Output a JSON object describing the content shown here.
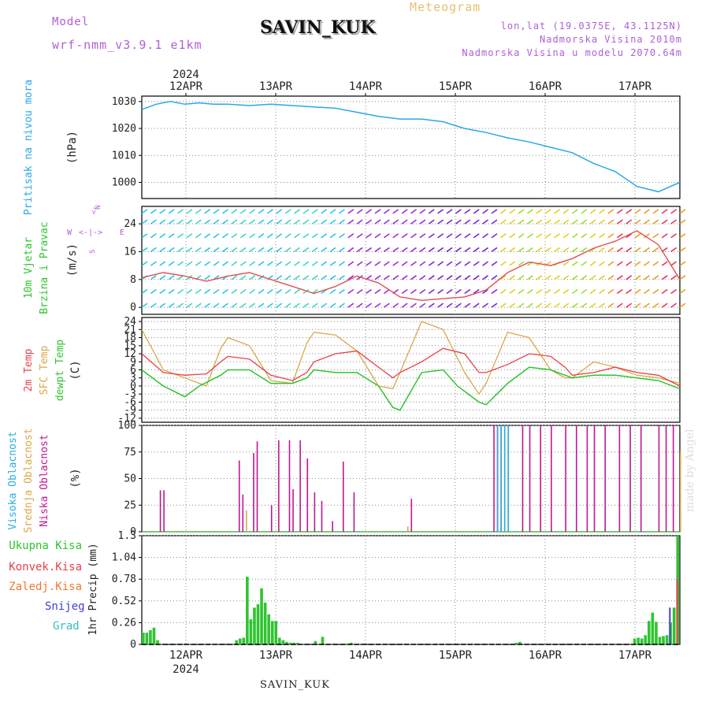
{
  "header": {
    "model_label": "Model",
    "model_version": "wrf-nmm_v3.9.1 e1km",
    "station": "SAVIN_KUK",
    "title": "Meteogram",
    "lonlat": "lon,lat (19.0375E, 43.1125N)",
    "altitude": "Nadmorska Visina 2010m",
    "model_altitude": "Nadmorska Visina u modelu 2070.64m"
  },
  "footer": {
    "station": "SAVIN_KUK",
    "credit": "made by Angel"
  },
  "time_axis": {
    "year": "2024",
    "days": [
      "12APR",
      "13APR",
      "14APR",
      "15APR",
      "16APR",
      "17APR"
    ]
  },
  "colors": {
    "pressure": "#2ba8e6",
    "temp2m": "#e8404a",
    "sfc_temp": "#d9a84a",
    "dewpt": "#2fc42f",
    "high_cloud": "#2aaee0",
    "mid_cloud": "#d9a84a",
    "low_cloud": "#c01890",
    "total_precip": "#2fc42f",
    "conv_precip": "#e8404a",
    "frozen_precip": "#f07830",
    "snow": "#4040d0",
    "hail": "#30c0c0"
  },
  "chart_data": [
    {
      "type": "line",
      "panel": "pressure",
      "ylabel_lines": [
        "Pritisak na nivou mora",
        "(hPa)"
      ],
      "yticks": [
        "1000",
        "1010",
        "1020",
        "1030"
      ],
      "ylim": [
        994,
        1032
      ],
      "x_unit": "hours since 11APR 12UTC",
      "series": [
        {
          "x": [
            0,
            4,
            8,
            12,
            16,
            20,
            24,
            30,
            36,
            42,
            48,
            54,
            60,
            66,
            72,
            78,
            84,
            90,
            96,
            102,
            108,
            114,
            120,
            126,
            132,
            138,
            144,
            150
          ],
          "y": [
            1027,
            1029,
            1030,
            1029,
            1029.5,
            1029,
            1029,
            1028.5,
            1029,
            1028.5,
            1028,
            1027.5,
            1026,
            1024.5,
            1023.5,
            1023.5,
            1022.5,
            1020,
            1018.5,
            1016.5,
            1015,
            1013,
            1011,
            1007,
            1004,
            998.5,
            996.5,
            1000
          ]
        }
      ]
    },
    {
      "type": "line",
      "panel": "wind",
      "ylabel_lines": [
        "10m Vjetar",
        "Brzina i Pravac",
        "(m/s)"
      ],
      "compass": [
        "N",
        "E",
        "S",
        "W"
      ],
      "yticks": [
        "0",
        "8",
        "16",
        "24"
      ],
      "ylim": [
        -2,
        29
      ],
      "series": [
        {
          "name": "speed",
          "x": [
            0,
            6,
            12,
            18,
            24,
            30,
            36,
            42,
            48,
            54,
            60,
            66,
            72,
            78,
            84,
            90,
            96,
            102,
            108,
            114,
            120,
            126,
            132,
            138,
            144,
            150
          ],
          "y": [
            8.5,
            10,
            9,
            7.5,
            9,
            10,
            8,
            6,
            4,
            6,
            9,
            7,
            3,
            2,
            2.5,
            3,
            5,
            10,
            13,
            12,
            14,
            17,
            19,
            22,
            18,
            8
          ]
        }
      ]
    },
    {
      "type": "line",
      "panel": "temperature",
      "ylabel_lines": [
        "2m Temp",
        "SFC Temp",
        "dewpt Temp",
        "(C)"
      ],
      "yticks": [
        "24",
        "21",
        "18",
        "15",
        "12",
        "9",
        "6",
        "3",
        "0",
        "-3",
        "-6",
        "-9",
        "-12"
      ],
      "ylim": [
        -13.5,
        25.5
      ],
      "series": [
        {
          "name": "2m Temp",
          "x": [
            0,
            6,
            12,
            18,
            22,
            24,
            30,
            36,
            42,
            46,
            48,
            54,
            60,
            66,
            70,
            72,
            78,
            84,
            90,
            94,
            96,
            102,
            108,
            114,
            118,
            120,
            126,
            132,
            138,
            144,
            150
          ],
          "y": [
            12,
            5,
            4,
            4.5,
            9,
            11,
            10,
            4,
            2,
            5,
            9,
            12,
            13,
            7,
            3,
            5,
            9,
            14,
            12,
            5,
            5,
            8,
            12,
            11,
            7,
            4,
            5,
            7,
            5,
            4,
            0
          ]
        },
        {
          "name": "SFC Temp",
          "x": [
            0,
            6,
            12,
            18,
            22,
            24,
            30,
            36,
            42,
            46,
            48,
            54,
            60,
            66,
            70,
            72,
            78,
            84,
            90,
            94,
            96,
            102,
            108,
            114,
            118,
            120,
            126,
            132,
            138,
            144,
            150
          ],
          "y": [
            21,
            6,
            3,
            0,
            14,
            18,
            15,
            2,
            1,
            16,
            20,
            19,
            13,
            0,
            -1,
            5,
            24,
            21,
            5,
            -3,
            1,
            20,
            18,
            6,
            3,
            3,
            9,
            7,
            4,
            3,
            1
          ]
        },
        {
          "name": "dewpt Temp",
          "x": [
            0,
            6,
            12,
            16,
            22,
            24,
            30,
            36,
            42,
            46,
            48,
            54,
            60,
            66,
            70,
            72,
            78,
            84,
            88,
            94,
            96,
            102,
            108,
            114,
            118,
            120,
            126,
            132,
            138,
            144,
            150
          ],
          "y": [
            6,
            0,
            -4,
            0,
            4,
            6,
            6,
            1,
            1,
            3,
            6,
            5,
            5,
            0,
            -8,
            -9,
            5,
            6,
            0,
            -6,
            -7,
            1,
            7,
            6,
            4,
            3,
            4,
            4,
            3,
            2,
            -1
          ]
        }
      ]
    },
    {
      "type": "bar",
      "panel": "clouds",
      "ylabel_lines": [
        "Visoka Oblacnost",
        "Srednja Oblacnost",
        "Niska Oblacnost",
        "(%)"
      ],
      "yticks": [
        "0",
        "25",
        "50",
        "75",
        "100"
      ],
      "ylim": [
        0,
        100
      ],
      "series": [
        {
          "name": "Niska Oblacnost",
          "x": [
            5,
            6,
            27,
            28,
            31,
            32,
            36,
            38,
            41,
            42,
            44,
            46,
            48,
            50,
            53,
            56,
            59,
            75,
            98,
            99,
            100,
            102,
            106,
            108,
            111,
            114,
            118,
            121,
            124,
            126,
            129,
            133,
            136,
            139,
            144,
            146,
            148
          ],
          "y": [
            39,
            39,
            67,
            35,
            74,
            85,
            25,
            86,
            86,
            40,
            86,
            69,
            37,
            29,
            10,
            66,
            37,
            31,
            100,
            100,
            100,
            100,
            100,
            100,
            100,
            100,
            100,
            100,
            100,
            100,
            100,
            100,
            100,
            100,
            100,
            100,
            100
          ]
        },
        {
          "name": "Srednja Oblacnost",
          "x": [
            29,
            74,
            100,
            101,
            150
          ],
          "y": [
            20,
            5,
            100,
            100,
            75
          ]
        },
        {
          "name": "Visoka Oblacnost",
          "x": [
            99,
            100,
            101,
            102
          ],
          "y": [
            100,
            100,
            100,
            100
          ]
        }
      ]
    },
    {
      "type": "bar",
      "panel": "precipitation",
      "ylabel_lines": [
        "Ukupna Kisa",
        "Konvek.Kisa",
        "Zaledj.Kisa",
        "Snijeg",
        "Grad",
        "1hr Precip (mm)"
      ],
      "yticks": [
        "0",
        "0.26",
        "0.52",
        "0.78",
        "1.04",
        "1.3"
      ],
      "ylim": [
        0,
        1.3
      ],
      "series": [
        {
          "name": "Ukupna Kisa",
          "x": [
            0,
            1,
            2,
            3,
            4,
            26,
            27,
            28,
            29,
            30,
            31,
            32,
            33,
            34,
            35,
            36,
            37,
            38,
            39,
            40,
            41,
            42,
            43,
            48,
            50,
            57,
            58,
            82,
            104,
            105,
            112,
            137,
            138,
            139,
            140,
            141,
            142,
            143,
            144,
            145,
            146,
            147,
            148,
            149
          ],
          "y": [
            0.14,
            0.14,
            0.17,
            0.2,
            0.05,
            0.05,
            0.07,
            0.08,
            0.81,
            0.3,
            0.44,
            0.48,
            0.67,
            0.5,
            0.36,
            0.28,
            0.28,
            0.08,
            0.05,
            0.03,
            0.02,
            0.02,
            0.02,
            0.04,
            0.09,
            0.01,
            0.02,
            0.01,
            0.02,
            0.03,
            0.01,
            0.07,
            0.08,
            0.07,
            0.11,
            0.28,
            0.38,
            0.27,
            0.09,
            0.1,
            0.11,
            0.26,
            0.44,
            1.3
          ]
        },
        {
          "name": "Konvek.Kisa",
          "x": [
            149
          ],
          "y": [
            0.78
          ]
        },
        {
          "name": "Snijeg",
          "x": [
            147
          ],
          "y": [
            0.44
          ]
        }
      ]
    }
  ]
}
